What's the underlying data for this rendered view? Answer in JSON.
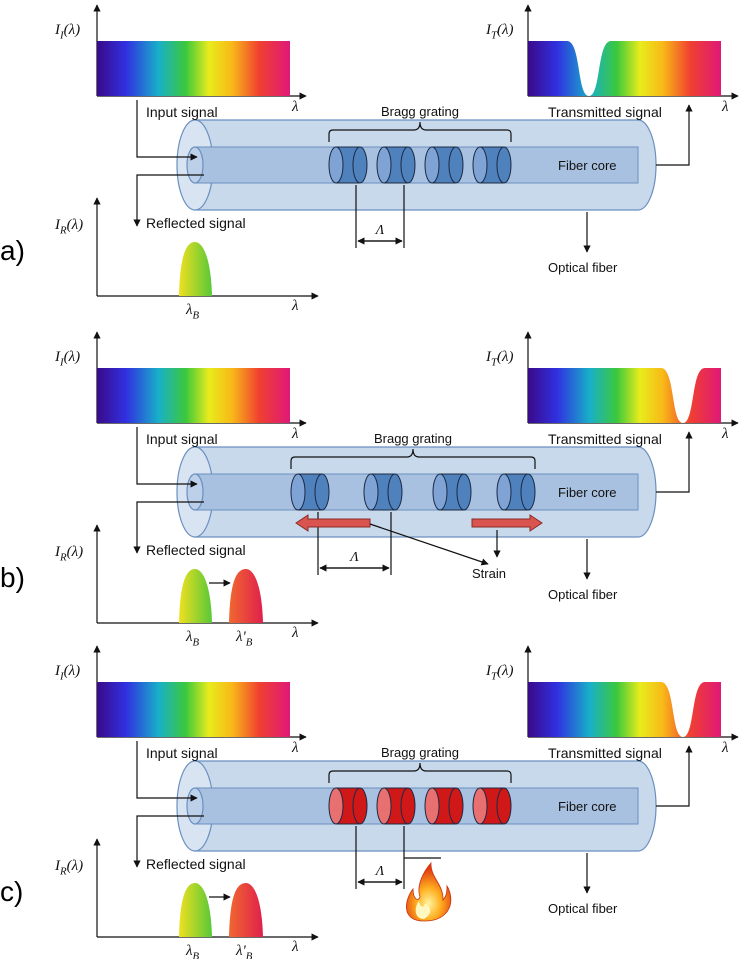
{
  "labels": {
    "input_intensity": "I_I(λ)",
    "transmitted_intensity": "I_T(λ)",
    "reflected_intensity": "I_R(λ)",
    "lambda": "λ",
    "lambda_b": "λ_B",
    "lambda_b_prime": "λ'_B",
    "input_signal": "Input signal",
    "transmitted_signal": "Transmitted signal",
    "reflected_signal": "Reflected signal",
    "bragg_grating": "Bragg grating",
    "fiber_core": "Fiber core",
    "optical_fiber": "Optical fiber",
    "grating_period": "Λ",
    "strain": "Strain"
  },
  "panels": [
    {
      "letter": "a)",
      "condition": "none"
    },
    {
      "letter": "b)",
      "condition": "strain"
    },
    {
      "letter": "c)",
      "condition": "temperature"
    }
  ],
  "colors": {
    "fiber_cladding": "#c9d9ec",
    "fiber_core": "#a9c1e0",
    "grating_normal": "#4f81bd",
    "grating_heated": "#d01818",
    "strain_arrow": "#d9534f"
  }
}
